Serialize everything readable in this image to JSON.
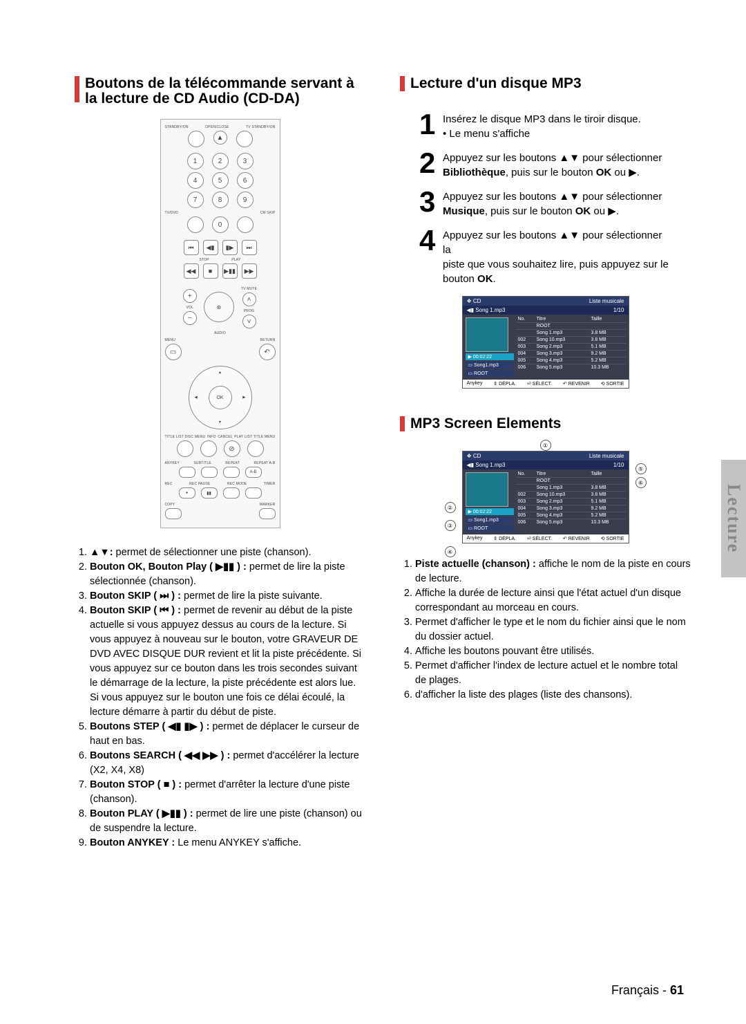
{
  "left": {
    "heading": "Boutons de la télécommande servant à la lecture de CD Audio (CD-DA)",
    "remote": {
      "top_labels": [
        "STANDBY/ON",
        "OPEN/CLOSE",
        "TV STANDBY/ON"
      ],
      "numpad": [
        "1",
        "2",
        "3",
        "4",
        "5",
        "6",
        "7",
        "8",
        "9",
        "0"
      ],
      "tvdvd_label": "TV/DVD",
      "cmskip_label": "CM SKIP",
      "transport_top": [
        "⏮",
        "◀▮",
        "▮▶",
        "⏭"
      ],
      "stop_label": "STOP",
      "play_label": "PLAY",
      "transport_mid": [
        "◀◀",
        "■",
        "▶▮▮",
        "▶▶"
      ],
      "tvmute": "TV MUTE",
      "ok_center": "⊛",
      "vol_label": "VOL",
      "prog_label": "PROG",
      "audio_label": "AUDIO",
      "menu_label": "MENU",
      "return_label": "RETURN",
      "menu_glyph": "▭",
      "return_glyph": "↶",
      "dpad_ok": "OK",
      "bottom_row1_labels": [
        "TITLE LIST DISC MENU",
        "INFO",
        "CANCEL",
        "PLAY LIST TITLE MENU"
      ],
      "cancel_glyph": "⊘",
      "bottom_row2_labels": [
        "ANYKEY",
        "SUBTITLE",
        "REPEAT",
        "REPEAT A-B"
      ],
      "bottom_row3_labels": [
        "REC",
        "REC PAUSE",
        "REC MODE",
        "TIMER"
      ],
      "rec_glyph": "●",
      "pause_glyph": "▮▮",
      "copy_label": "COPY",
      "marker_label": "MARKER"
    },
    "functions": [
      {
        "pre": "▲▼:",
        "body": " permet de sélectionner une piste (chanson)."
      },
      {
        "pre": "Bouton OK, Bouton Play ( ▶▮▮ ) :",
        "body": " permet de lire la piste sélectionnée (chanson)."
      },
      {
        "pre": "Bouton SKIP ( ⏭ ) :",
        "body": " permet de lire la piste suivante."
      },
      {
        "pre": "Bouton SKIP ( ⏮ ) :",
        "body": " permet de revenir au début de la piste actuelle si vous appuyez dessus au cours de la lecture. Si vous appuyez à nouveau sur le bouton, votre GRAVEUR DE DVD AVEC DISQUE DUR revient et lit la piste précédente. Si vous appuyez sur ce bouton dans les trois secondes suivant le démarrage de la lecture, la piste précédente est alors lue. Si vous appuyez sur le bouton une fois ce délai écoulé, la lecture démarre à partir du début de piste."
      },
      {
        "pre": "Boutons STEP ( ◀▮ ▮▶ ) :",
        "body": " permet de déplacer le curseur de haut en bas."
      },
      {
        "pre": "Boutons SEARCH ( ◀◀ ▶▶ ) :",
        "body": " permet d'accélérer la lecture (X2, X4, X8)"
      },
      {
        "pre": "Bouton STOP ( ■ ) :",
        "body": " permet d'arrêter la lecture d'une piste (chanson)."
      },
      {
        "pre": "Bouton PLAY ( ▶▮▮ ) :",
        "body": " permet de lire une piste (chanson) ou de suspendre la lecture."
      },
      {
        "pre": "Bouton ANYKEY :",
        "body": "  Le menu ANYKEY s'affiche."
      }
    ]
  },
  "right": {
    "heading1": "Lecture d'un disque MP3",
    "steps": [
      {
        "lines": [
          "Insérez le disque MP3 dans le tiroir disque.",
          "• Le menu s'affiche"
        ]
      },
      {
        "lines": [
          "Appuyez sur les boutons ▲▼ pour sélectionner"
        ],
        "bold": "Bibliothèque",
        "tail": ", puis sur le bouton ",
        "bold2": "OK",
        "tail2": " ou ▶."
      },
      {
        "lines": [
          "Appuyez sur les boutons ▲▼ pour sélectionner"
        ],
        "bold": "Musique",
        "tail": ", puis sur le bouton ",
        "bold2": "OK",
        "tail2": " ou ▶."
      },
      {
        "lines": [
          "Appuyez sur les boutons ▲▼ pour sélectionner la",
          "piste que vous souhaitez lire, puis appuyez sur le"
        ],
        "bold": "OK",
        "prefix": "bouton ",
        "tail": "."
      }
    ],
    "ui": {
      "brand": "CD",
      "title_right": "Liste musicale",
      "now": "Song 1.mp3",
      "counter": "1/10",
      "time": "00:02:22",
      "left_rows": [
        "Song1.mp3",
        "ROOT"
      ],
      "cols": [
        "No.",
        "Titre",
        "Taille"
      ],
      "rows": [
        [
          "",
          "ROOT",
          ""
        ],
        [
          "",
          "Song 1.mp3",
          "3.8 MB"
        ],
        [
          "002",
          "Song 10.mp3",
          "3.8 MB"
        ],
        [
          "003",
          "Song 2.mp3",
          "5.1 MB"
        ],
        [
          "004",
          "Song 3.mp3",
          "9.2 MB"
        ],
        [
          "005",
          "Song 4.mp3",
          "5.2 MB"
        ],
        [
          "006",
          "Song 5.mp3",
          "10.3 MB"
        ]
      ],
      "footer": [
        "Anykey",
        "⇕ DÉPLA.",
        "⏎ SÉLECT.",
        "↶ REVENIR",
        "⟲ SORTIE"
      ]
    },
    "heading2": "MP3 Screen Elements",
    "callouts": [
      "①",
      "②",
      "③",
      "④",
      "⑤",
      "⑥"
    ],
    "elements": [
      {
        "pre": "Piste actuelle (chanson) :",
        "body": " affiche le nom de la piste en cours de lecture."
      },
      {
        "pre": "",
        "body": "Affiche la durée de lecture ainsi que l'état actuel d'un disque correspondant au morceau en cours."
      },
      {
        "pre": "",
        "body": "Permet d'afficher le type et le nom du fichier ainsi que le nom du dossier actuel."
      },
      {
        "pre": "",
        "body": "Affiche les boutons pouvant être utilisés."
      },
      {
        "pre": "",
        "body": "Permet d'afficher l'index de lecture actuel et le nombre total de plages."
      },
      {
        "pre": "",
        "body": "d'afficher la liste des plages (liste des chansons)."
      }
    ]
  },
  "footer": {
    "lang": "Français",
    "sep": " - ",
    "page": "61"
  },
  "sidetab": "Lecture",
  "colors": {
    "red": "#d73838",
    "tab": "#c3c3c3"
  }
}
